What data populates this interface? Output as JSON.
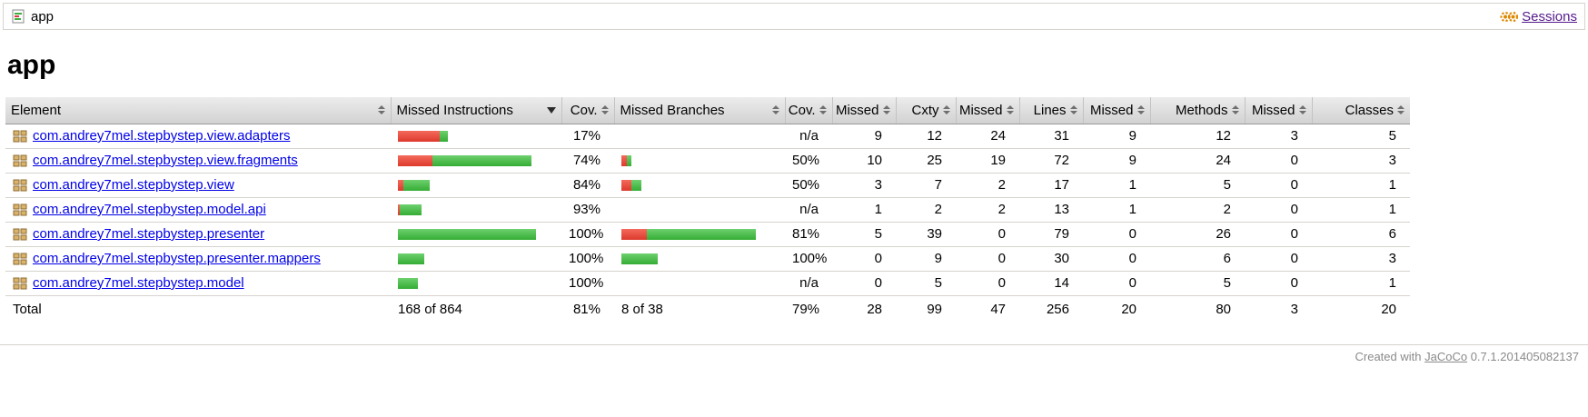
{
  "breadcrumb": {
    "current": "app",
    "sessions_label": "Sessions"
  },
  "page_title": "app",
  "colors": {
    "bar_missed_red": "#e04a3a",
    "bar_covered_green": "#4cc24c",
    "link_blue": "#0000e8",
    "sessions_link_purple": "#551a8b",
    "header_gray": "#d9d9d9"
  },
  "table": {
    "headers": [
      "Element",
      "Missed Instructions",
      "Cov.",
      "Missed Branches",
      "Cov.",
      "Missed",
      "Cxty",
      "Missed",
      "Lines",
      "Missed",
      "Methods",
      "Missed",
      "Classes"
    ],
    "sorted_column": "Missed Instructions",
    "rows": [
      {
        "name": "com.andrey7mel.stepbystep.view.adapters",
        "instr_bar": {
          "red": 46,
          "green": 9
        },
        "instr_cov": "17%",
        "branch_bar": {
          "red": 0,
          "green": 0
        },
        "branch_cov": "n/a",
        "missed_cxty": "9",
        "cxty": "12",
        "missed_lines": "24",
        "lines": "31",
        "missed_methods": "9",
        "methods": "12",
        "missed_classes": "3",
        "classes": "5"
      },
      {
        "name": "com.andrey7mel.stepbystep.view.fragments",
        "instr_bar": {
          "red": 38,
          "green": 109
        },
        "instr_cov": "74%",
        "branch_bar": {
          "red": 6,
          "green": 5
        },
        "branch_cov": "50%",
        "missed_cxty": "10",
        "cxty": "25",
        "missed_lines": "19",
        "lines": "72",
        "missed_methods": "9",
        "methods": "24",
        "missed_classes": "0",
        "classes": "3"
      },
      {
        "name": "com.andrey7mel.stepbystep.view",
        "instr_bar": {
          "red": 6,
          "green": 29
        },
        "instr_cov": "84%",
        "branch_bar": {
          "red": 11,
          "green": 11
        },
        "branch_cov": "50%",
        "missed_cxty": "3",
        "cxty": "7",
        "missed_lines": "2",
        "lines": "17",
        "missed_methods": "1",
        "methods": "5",
        "missed_classes": "0",
        "classes": "1"
      },
      {
        "name": "com.andrey7mel.stepbystep.model.api",
        "instr_bar": {
          "red": 2,
          "green": 24
        },
        "instr_cov": "93%",
        "branch_bar": {
          "red": 0,
          "green": 0
        },
        "branch_cov": "n/a",
        "missed_cxty": "1",
        "cxty": "2",
        "missed_lines": "2",
        "lines": "13",
        "missed_methods": "1",
        "methods": "2",
        "missed_classes": "0",
        "classes": "1"
      },
      {
        "name": "com.andrey7mel.stepbystep.presenter",
        "instr_bar": {
          "red": 0,
          "green": 152
        },
        "instr_cov": "100%",
        "branch_bar": {
          "red": 28,
          "green": 120
        },
        "branch_cov": "81%",
        "missed_cxty": "5",
        "cxty": "39",
        "missed_lines": "0",
        "lines": "79",
        "missed_methods": "0",
        "methods": "26",
        "missed_classes": "0",
        "classes": "6"
      },
      {
        "name": "com.andrey7mel.stepbystep.presenter.mappers",
        "instr_bar": {
          "red": 0,
          "green": 29
        },
        "instr_cov": "100%",
        "branch_bar": {
          "red": 0,
          "green": 40
        },
        "branch_cov": "100%",
        "missed_cxty": "0",
        "cxty": "9",
        "missed_lines": "0",
        "lines": "30",
        "missed_methods": "0",
        "methods": "6",
        "missed_classes": "0",
        "classes": "3"
      },
      {
        "name": "com.andrey7mel.stepbystep.model",
        "instr_bar": {
          "red": 0,
          "green": 22
        },
        "instr_cov": "100%",
        "branch_bar": {
          "red": 0,
          "green": 0
        },
        "branch_cov": "n/a",
        "missed_cxty": "0",
        "cxty": "5",
        "missed_lines": "0",
        "lines": "14",
        "missed_methods": "0",
        "methods": "5",
        "missed_classes": "0",
        "classes": "1"
      }
    ],
    "total": {
      "label": "Total",
      "instr_text": "168 of 864",
      "instr_cov": "81%",
      "branch_text": "8 of 38",
      "branch_cov": "79%",
      "missed_cxty": "28",
      "cxty": "99",
      "missed_lines": "47",
      "lines": "256",
      "missed_methods": "20",
      "methods": "80",
      "missed_classes": "3",
      "classes": "20"
    }
  },
  "footer": {
    "prefix": "Created with",
    "link_label": "JaCoCo",
    "version": "0.7.1.201405082137"
  }
}
